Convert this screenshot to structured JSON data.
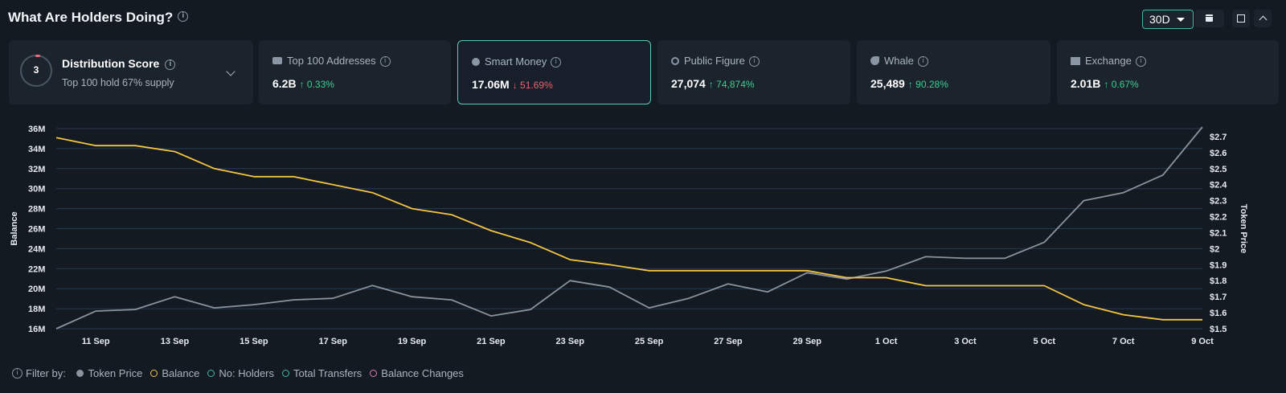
{
  "header": {
    "title": "What Are Holders Doing?",
    "range_label": "30D"
  },
  "distribution": {
    "score": "3",
    "title": "Distribution Score",
    "subtitle": "Top 100 hold 67% supply"
  },
  "cards": [
    {
      "label": "Top 100 Addresses",
      "value": "6.2B",
      "change": "↑ 0.33%",
      "direction": "up"
    },
    {
      "label": "Smart Money",
      "value": "17.06M",
      "change": "↓ 51.69%",
      "direction": "down"
    },
    {
      "label": "Public Figure",
      "value": "27,074",
      "change": "↑ 74,874%",
      "direction": "up"
    },
    {
      "label": "Whale",
      "value": "25,489",
      "change": "↑ 90.28%",
      "direction": "up"
    },
    {
      "label": "Exchange",
      "value": "2.01B",
      "change": "↑ 0.67%",
      "direction": "up"
    }
  ],
  "filters": {
    "label": "Filter by:",
    "items": [
      {
        "label": "Token Price",
        "color": "#8a939c",
        "filled": true
      },
      {
        "label": "Balance",
        "color": "#f5c542",
        "filled": false
      },
      {
        "label": "No: Holders",
        "color": "#3fb9a5",
        "filled": false
      },
      {
        "label": "Total Transfers",
        "color": "#3fb9a5",
        "filled": false
      },
      {
        "label": "Balance Changes",
        "color": "#e07ab8",
        "filled": false
      }
    ]
  },
  "chart_data": {
    "type": "line",
    "ylabel": "Balance",
    "y2label": "Token Price",
    "ylim": [
      16,
      36
    ],
    "y2lim": [
      1.5,
      2.75
    ],
    "yticks": [
      "16M",
      "18M",
      "20M",
      "22M",
      "24M",
      "26M",
      "28M",
      "30M",
      "32M",
      "34M",
      "36M"
    ],
    "y2ticks": [
      "$1.5",
      "$1.6",
      "$1.7",
      "$1.8",
      "$1.9",
      "$2",
      "$2.1",
      "$2.2",
      "$2.3",
      "$2.4",
      "$2.5",
      "$2.6",
      "$2.7"
    ],
    "xticks": [
      "11 Sep",
      "13 Sep",
      "15 Sep",
      "17 Sep",
      "19 Sep",
      "21 Sep",
      "23 Sep",
      "25 Sep",
      "27 Sep",
      "29 Sep",
      "1 Oct",
      "3 Oct",
      "5 Oct",
      "7 Oct",
      "9 Oct"
    ],
    "x": [
      "10 Sep",
      "11 Sep",
      "12 Sep",
      "13 Sep",
      "14 Sep",
      "15 Sep",
      "16 Sep",
      "17 Sep",
      "18 Sep",
      "19 Sep",
      "20 Sep",
      "21 Sep",
      "22 Sep",
      "23 Sep",
      "24 Sep",
      "25 Sep",
      "26 Sep",
      "27 Sep",
      "28 Sep",
      "29 Sep",
      "30 Sep",
      "1 Oct",
      "2 Oct",
      "3 Oct",
      "4 Oct",
      "5 Oct",
      "6 Oct",
      "7 Oct",
      "8 Oct",
      "9 Oct"
    ],
    "series": [
      {
        "name": "Balance",
        "axis": "left",
        "color": "#f5c542",
        "values": [
          35.1,
          34.3,
          34.3,
          33.7,
          32.0,
          31.2,
          31.2,
          30.4,
          29.6,
          28.0,
          27.4,
          25.8,
          24.6,
          22.9,
          22.4,
          21.8,
          21.8,
          21.8,
          21.8,
          21.8,
          21.1,
          21.1,
          20.3,
          20.3,
          20.3,
          20.3,
          18.4,
          17.4,
          16.9,
          16.9
        ]
      },
      {
        "name": "Token Price",
        "axis": "right",
        "color": "#8a939c",
        "values": [
          1.5,
          1.61,
          1.62,
          1.7,
          1.63,
          1.65,
          1.68,
          1.69,
          1.77,
          1.7,
          1.68,
          1.58,
          1.62,
          1.8,
          1.76,
          1.63,
          1.69,
          1.78,
          1.73,
          1.85,
          1.81,
          1.86,
          1.95,
          1.94,
          1.94,
          2.04,
          2.3,
          2.35,
          2.46,
          2.76
        ]
      }
    ],
    "grid": true
  }
}
